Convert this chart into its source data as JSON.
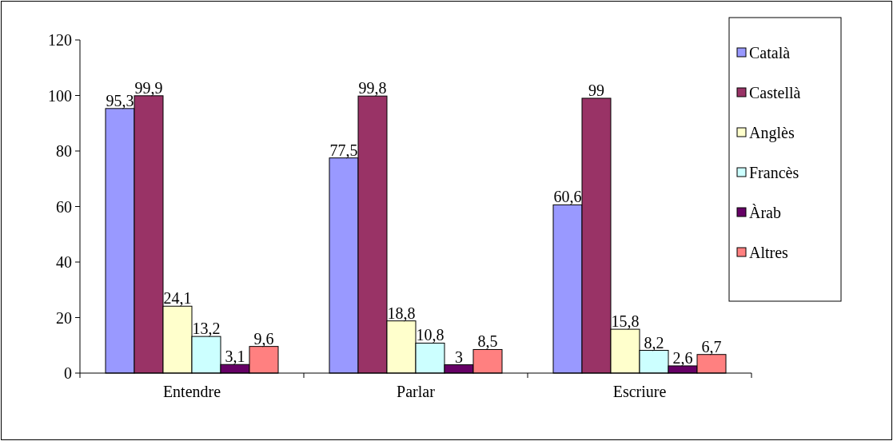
{
  "chart_data": {
    "type": "bar",
    "categories": [
      "Entendre",
      "Parlar",
      "Escriure"
    ],
    "series": [
      {
        "name": "Català",
        "color": "#9999ff",
        "values": [
          95.3,
          77.5,
          60.6
        ],
        "value_labels": [
          "95,3",
          "77,5",
          "60,6"
        ]
      },
      {
        "name": "Castellà",
        "color": "#993366",
        "values": [
          99.9,
          99.8,
          99
        ],
        "value_labels": [
          "99,9",
          "99,8",
          "99"
        ]
      },
      {
        "name": "Anglès",
        "color": "#ffffcc",
        "values": [
          24.1,
          18.8,
          15.8
        ],
        "value_labels": [
          "24,1",
          "18,8",
          "15,8"
        ]
      },
      {
        "name": "Francès",
        "color": "#ccffff",
        "values": [
          13.2,
          10.8,
          8.2
        ],
        "value_labels": [
          "13,2",
          "10,8",
          "8,2"
        ]
      },
      {
        "name": "Àrab",
        "color": "#660066",
        "values": [
          3.1,
          3,
          2.6
        ],
        "value_labels": [
          "3,1",
          "3",
          "2,6"
        ]
      },
      {
        "name": "Altres",
        "color": "#ff8080",
        "values": [
          9.6,
          8.5,
          6.7
        ],
        "value_labels": [
          "9,6",
          "8,5",
          "6,7"
        ]
      }
    ],
    "ylim": [
      0,
      120
    ],
    "yticks": [
      0,
      20,
      40,
      60,
      80,
      100,
      120
    ],
    "grid": false,
    "legend": "right"
  }
}
